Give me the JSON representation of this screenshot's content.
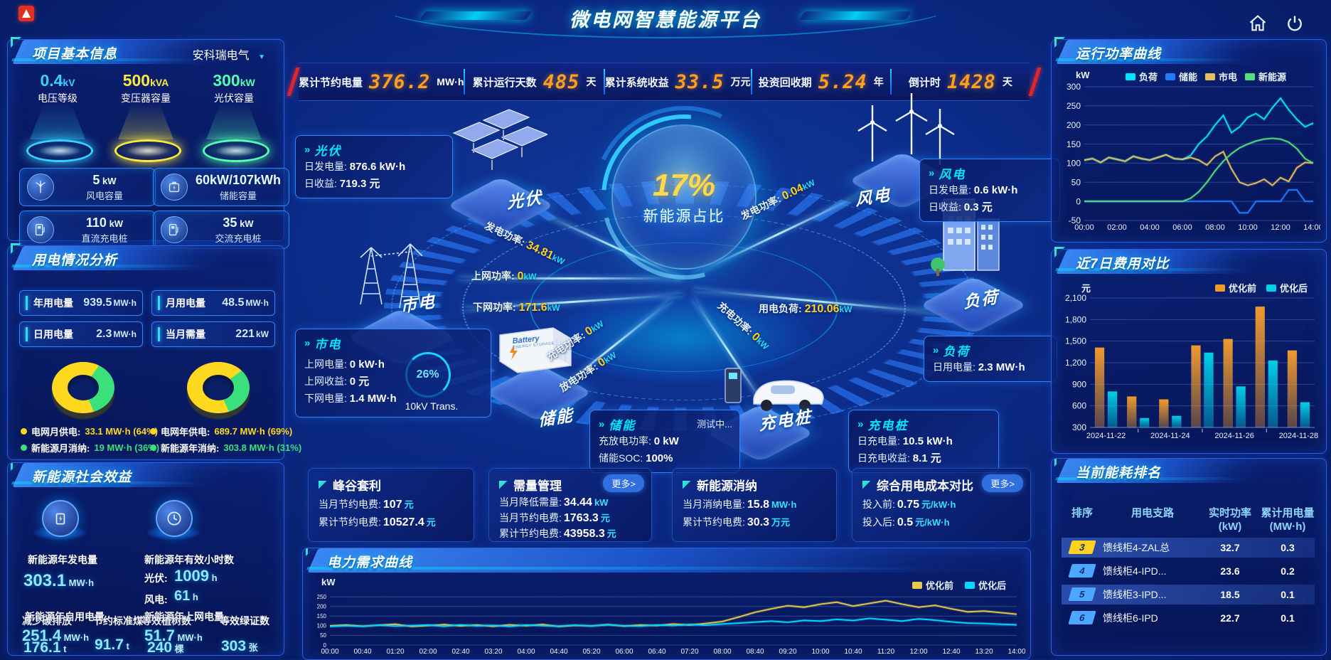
{
  "header": {
    "title": "微电网智慧能源平台"
  },
  "kpi_bar": [
    {
      "label": "累计节约电量",
      "value": "376.2",
      "unit": "MW·h"
    },
    {
      "label": "累计运行天数",
      "value": "485",
      "unit": "天"
    },
    {
      "label": "累计系统收益",
      "value": "33.5",
      "unit": "万元"
    },
    {
      "label": "投资回收期",
      "value": "5.24",
      "unit": "年"
    },
    {
      "label": "倒计时",
      "value": "1428",
      "unit": "天"
    }
  ],
  "project": {
    "title": "项目基本信息",
    "company": "安科瑞电气",
    "dropdown_caret": "▼",
    "podiums": [
      {
        "value": "0.4",
        "unit": "kV",
        "label": "电压等级",
        "color": "#35d2ff"
      },
      {
        "value": "500",
        "unit": "kVA",
        "label": "变压器容量",
        "color": "#ffe93d"
      },
      {
        "value": "300",
        "unit": "kW",
        "label": "光伏容量",
        "color": "#55ffb0"
      }
    ],
    "stats": [
      {
        "value": "5",
        "unit": "kW",
        "label": "风电容量",
        "icon": "wind-icon"
      },
      {
        "value": "60kW/107kWh",
        "unit": "",
        "label": "储能容量",
        "icon": "battery-icon"
      },
      {
        "value": "110",
        "unit": "kW",
        "label": "直流充电桩",
        "icon": "dc-charger-icon"
      },
      {
        "value": "35",
        "unit": "kW",
        "label": "交流充电桩",
        "icon": "ac-charger-icon"
      }
    ]
  },
  "usage": {
    "title": "用电情况分析",
    "stats": [
      {
        "label": "年用电量",
        "value": "939.5",
        "unit": "MW·h"
      },
      {
        "label": "月用电量",
        "value": "48.5",
        "unit": "MW·h"
      },
      {
        "label": "日用电量",
        "value": "2.3",
        "unit": "MW·h"
      },
      {
        "label": "当月需量",
        "value": "221",
        "unit": "kW"
      }
    ],
    "donuts": [
      {
        "grid_pct": 64,
        "renewable_pct": 36
      },
      {
        "grid_pct": 69,
        "renewable_pct": 31
      }
    ],
    "legend": [
      {
        "label": "电网月供电:",
        "value": "33.1 MW·h (64%)",
        "color": "#ffd91f"
      },
      {
        "label": "新能源月消纳:",
        "value": "19 MW·h (36%)",
        "color": "#3ae07a"
      },
      {
        "label": "电网年供电:",
        "value": "689.7 MW·h (69%)",
        "color": "#ffd91f"
      },
      {
        "label": "新能源年消纳:",
        "value": "303.8 MW·h (31%)",
        "color": "#3ae07a"
      }
    ]
  },
  "benefit": {
    "title": "新能源社会效益",
    "gen": {
      "label": "新能源年发电量",
      "value": "303.1",
      "unit": "MW·h"
    },
    "hours": {
      "label": "新能源年有效小时数",
      "pv_label": "光伏:",
      "pv_value": "1009",
      "pv_unit": "h",
      "wind_label": "风电:",
      "wind_value": "61",
      "wind_unit": "h"
    },
    "self_use": {
      "label": "新能源年自用电量",
      "value": "251.4",
      "unit": "MW·h"
    },
    "to_grid": {
      "label": "新能源年上网电量",
      "value": "51.7",
      "unit": "MW·h"
    },
    "co2": {
      "label": "减少碳排放",
      "value": "176.1",
      "unit": "t"
    },
    "coal": {
      "label": "节约标准煤",
      "value": "91.7",
      "unit": "t"
    },
    "trees": {
      "label": "等效植树数",
      "value": "240",
      "unit": "棵"
    },
    "certs": {
      "label": "等效绿证数",
      "value": "303",
      "unit": "张"
    }
  },
  "diagram": {
    "center_value": "17%",
    "center_label": "新能源占比",
    "transformer": {
      "percent": "26%",
      "label": "10kV Trans."
    },
    "storage_box": {
      "line1": "Battery",
      "line2": "ENERGY STORAGE"
    },
    "nodes": {
      "pv": "光伏",
      "wind": "风电",
      "grid": "市电",
      "storage": "储能",
      "charger": "充电桩",
      "load": "负荷"
    },
    "cards": {
      "pv": {
        "title": "光伏",
        "rows": [
          [
            "日发电量:",
            "876.6 kW·h"
          ],
          [
            "日收益:",
            "719.3 元"
          ]
        ]
      },
      "wind": {
        "title": "风电",
        "rows": [
          [
            "日发电量:",
            "0.6 kW·h"
          ],
          [
            "日收益:",
            "0.3 元"
          ]
        ]
      },
      "grid": {
        "title": "市电",
        "rows": [
          [
            "上网电量:",
            "0 kW·h"
          ],
          [
            "上网收益:",
            "0 元"
          ],
          [
            "下网电量:",
            "1.4 MW·h"
          ]
        ]
      },
      "storage": {
        "title": "储能",
        "tag": "测试中...",
        "rows": [
          [
            "充放电功率:",
            "0 kW"
          ],
          [
            "储能SOC:",
            "100%"
          ]
        ]
      },
      "charger": {
        "title": "充电桩",
        "rows": [
          [
            "日充电量:",
            "10.5 kW·h"
          ],
          [
            "日充电收益:",
            "8.1 元"
          ]
        ]
      },
      "load": {
        "title": "负荷",
        "rows": [
          [
            "日用电量:",
            "2.3 MW·h"
          ]
        ]
      }
    },
    "flow_labels": [
      {
        "label": "发电功率:",
        "value": "34.81",
        "unit": "kW"
      },
      {
        "label": "上网功率:",
        "value": "0",
        "unit": "kW"
      },
      {
        "label": "下网功率:",
        "value": "171.6",
        "unit": "kW"
      },
      {
        "label": "发电功率:",
        "value": "0.04",
        "unit": "kW"
      },
      {
        "label": "用电负荷:",
        "value": "210.06",
        "unit": "kW"
      },
      {
        "label": "充电功率:",
        "value": "0",
        "unit": "kW"
      },
      {
        "label": "放电功率:",
        "value": "0",
        "unit": "kW"
      },
      {
        "label": "充电功率:",
        "value": "0",
        "unit": "kW"
      }
    ]
  },
  "benefit_cards": [
    {
      "title": "峰谷套利",
      "more": "",
      "rows": [
        [
          "当月节约电费:",
          "107",
          "元"
        ],
        [
          "累计节约电费:",
          "10527.4",
          "元"
        ]
      ]
    },
    {
      "title": "需量管理",
      "more": "更多>",
      "rows": [
        [
          "当月降低需量:",
          "34.44",
          "kW"
        ],
        [
          "当月节约电费:",
          "1763.3",
          "元"
        ],
        [
          "累计节约电费:",
          "43958.3",
          "元"
        ]
      ]
    },
    {
      "title": "新能源消纳",
      "more": "",
      "rows": [
        [
          "当月消纳电量:",
          "15.8",
          "MW·h"
        ],
        [
          "累计节约电费:",
          "30.3",
          "万元"
        ]
      ]
    },
    {
      "title": "综合用电成本对比",
      "more": "更多>",
      "rows": [
        [
          "投入前:",
          "0.75",
          "元/kW·h"
        ],
        [
          "投入后:",
          "0.5",
          "元/kW·h"
        ]
      ]
    }
  ],
  "ranking": {
    "title": "当前能耗排名",
    "columns": [
      {
        "label": "排序",
        "sub": ""
      },
      {
        "label": "用电支路",
        "sub": ""
      },
      {
        "label": "实时功率",
        "sub": "(kW)"
      },
      {
        "label": "累计用电量",
        "sub": "(MW·h)"
      }
    ],
    "rows": [
      {
        "rank": "3",
        "branch": "馈线柜4-ZAL总",
        "power": "32.7",
        "energy": "0.3",
        "badge": "#ffd21f",
        "highlight": true
      },
      {
        "rank": "4",
        "branch": "馈线柜4-IPD...",
        "power": "23.6",
        "energy": "0.2",
        "badge": "#4da6ff",
        "highlight": false
      },
      {
        "rank": "5",
        "branch": "馈线柜3-IPD...",
        "power": "18.5",
        "energy": "0.1",
        "badge": "#4da6ff",
        "highlight": true
      },
      {
        "rank": "6",
        "branch": "馈线柜6-IPD",
        "power": "22.7",
        "energy": "0.1",
        "badge": "#4da6ff",
        "highlight": false
      }
    ]
  },
  "chart_data": [
    {
      "id": "run_power",
      "type": "line",
      "title": "运行功率曲线",
      "ylabel": "kW",
      "ylim": [
        -50,
        300
      ],
      "yticks": [
        -50,
        0,
        50,
        100,
        150,
        200,
        250,
        300
      ],
      "x_interval_minutes": 30,
      "xtick_labels": [
        "00:00",
        "02:00",
        "04:00",
        "06:00",
        "08:00",
        "10:00",
        "12:00",
        "14:00"
      ],
      "legend_position": "top",
      "series": [
        {
          "name": "负荷",
          "color": "#00e5ff",
          "values": [
            108,
            112,
            102,
            115,
            110,
            105,
            118,
            112,
            108,
            115,
            122,
            112,
            110,
            120,
            150,
            170,
            200,
            225,
            180,
            195,
            220,
            230,
            215,
            245,
            270,
            240,
            215,
            195,
            205
          ]
        },
        {
          "name": "储能",
          "color": "#1f7bff",
          "values": [
            0,
            0,
            0,
            0,
            0,
            0,
            0,
            0,
            0,
            0,
            0,
            0,
            0,
            0,
            0,
            0,
            0,
            0,
            0,
            -30,
            -30,
            0,
            0,
            0,
            0,
            30,
            30,
            0,
            0
          ]
        },
        {
          "name": "市电",
          "color": "#e8c05a",
          "values": [
            108,
            112,
            102,
            115,
            110,
            105,
            118,
            112,
            108,
            115,
            122,
            112,
            110,
            115,
            108,
            95,
            118,
            130,
            85,
            50,
            42,
            48,
            58,
            42,
            62,
            52,
            88,
            102,
            100
          ]
        },
        {
          "name": "新能源",
          "color": "#52e07a",
          "values": [
            0,
            0,
            0,
            0,
            0,
            0,
            0,
            0,
            0,
            0,
            0,
            0,
            0,
            8,
            25,
            50,
            80,
            105,
            125,
            140,
            150,
            158,
            163,
            165,
            163,
            155,
            138,
            112,
            100
          ]
        }
      ]
    },
    {
      "id": "cost7",
      "type": "bar",
      "title": "近7日费用对比",
      "ylabel": "元",
      "ylim": [
        300,
        2100
      ],
      "yticks": [
        300,
        600,
        900,
        1200,
        1500,
        1800,
        2100
      ],
      "categories": [
        "2024-11-22",
        "2024-11-23",
        "2024-11-24",
        "2024-11-25",
        "2024-11-26",
        "2024-11-27",
        "2024-11-28"
      ],
      "xtick_labels_shown": [
        "2024-11-22",
        "2024-11-24",
        "2024-11-26",
        "2024-11-28"
      ],
      "legend_position": "top-right",
      "series": [
        {
          "name": "优化前",
          "color": "#f09a2e",
          "values": [
            1410,
            730,
            690,
            1440,
            1530,
            1980,
            1370
          ]
        },
        {
          "name": "优化后",
          "color": "#00cfe8",
          "values": [
            800,
            430,
            460,
            1340,
            870,
            1230,
            650
          ]
        }
      ]
    },
    {
      "id": "demand",
      "type": "line",
      "title": "电力需求曲线",
      "ylabel": "kW",
      "ylim": [
        0,
        280
      ],
      "yticks": [
        0,
        50,
        100,
        150,
        200,
        250
      ],
      "x_interval_minutes": 20,
      "xtick_labels": [
        "00:00",
        "00:40",
        "01:20",
        "02:00",
        "02:40",
        "03:20",
        "04:00",
        "04:40",
        "05:20",
        "06:00",
        "06:40",
        "07:20",
        "08:00",
        "08:40",
        "09:20",
        "10:00",
        "10:40",
        "11:20",
        "12:00",
        "12:40",
        "13:20",
        "14:00"
      ],
      "legend_position": "top-right",
      "series": [
        {
          "name": "优化前",
          "color": "#e6c84a",
          "values": [
            100,
            104,
            98,
            103,
            108,
            96,
            101,
            106,
            99,
            104,
            97,
            105,
            100,
            107,
            96,
            102,
            99,
            106,
            98,
            104,
            101,
            109,
            104,
            112,
            122,
            145,
            170,
            188,
            204,
            196,
            212,
            222,
            202,
            216,
            230,
            212,
            196,
            206,
            188,
            172,
            176,
            168,
            160
          ]
        },
        {
          "name": "优化后",
          "color": "#00d8ff",
          "values": [
            96,
            100,
            97,
            103,
            98,
            101,
            104,
            97,
            105,
            99,
            102,
            96,
            104,
            100,
            98,
            103,
            99,
            105,
            100,
            98,
            104,
            101,
            107,
            103,
            109,
            114,
            119,
            124,
            118,
            128,
            124,
            133,
            127,
            138,
            131,
            124,
            136,
            129,
            120,
            114,
            112,
            108,
            105
          ]
        }
      ]
    },
    {
      "id": "usage_donuts",
      "type": "pie",
      "title": "用电情况分析",
      "donuts": [
        {
          "name": "月",
          "slices": [
            {
              "label": "电网月供电",
              "pct": 64,
              "value": "33.1 MW·h"
            },
            {
              "label": "新能源月消纳",
              "pct": 36,
              "value": "19 MW·h"
            }
          ]
        },
        {
          "name": "年",
          "slices": [
            {
              "label": "电网年供电",
              "pct": 69,
              "value": "689.7 MW·h"
            },
            {
              "label": "新能源年消纳",
              "pct": 31,
              "value": "303.8 MW·h"
            }
          ]
        }
      ]
    }
  ]
}
